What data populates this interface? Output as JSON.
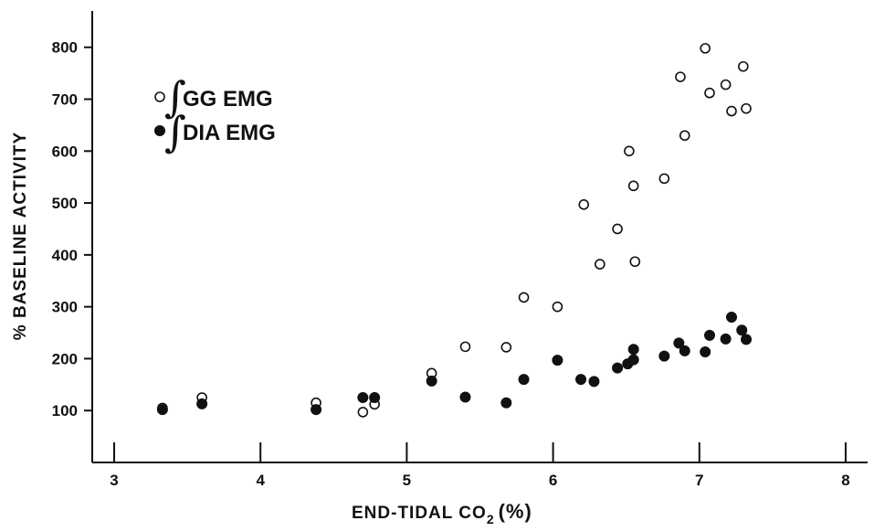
{
  "chart_data": {
    "type": "scatter",
    "title": "",
    "xlabel": "END-TIDAL CO",
    "xlabel_sub": "2",
    "xlabel_unit": "(%)",
    "ylabel": "% BASELINE ACTIVITY",
    "xlim": [
      2.85,
      8.15
    ],
    "ylim": [
      0,
      870
    ],
    "x_ticks": [
      3,
      4,
      5,
      6,
      7,
      8
    ],
    "y_ticks": [
      100,
      200,
      300,
      400,
      500,
      600,
      700,
      800
    ],
    "grid": false,
    "legend_position": "top-left",
    "series": [
      {
        "name": "GG EMG",
        "marker": "open-circle",
        "points": [
          [
            3.33,
            105
          ],
          [
            3.6,
            125
          ],
          [
            4.38,
            115
          ],
          [
            4.7,
            97
          ],
          [
            4.78,
            112
          ],
          [
            5.17,
            172
          ],
          [
            5.4,
            223
          ],
          [
            5.68,
            222
          ],
          [
            5.8,
            318
          ],
          [
            6.03,
            300
          ],
          [
            6.21,
            497
          ],
          [
            6.32,
            382
          ],
          [
            6.44,
            450
          ],
          [
            6.52,
            600
          ],
          [
            6.55,
            533
          ],
          [
            6.56,
            387
          ],
          [
            6.76,
            547
          ],
          [
            6.87,
            743
          ],
          [
            6.9,
            630
          ],
          [
            7.04,
            798
          ],
          [
            7.07,
            712
          ],
          [
            7.18,
            728
          ],
          [
            7.22,
            677
          ],
          [
            7.3,
            763
          ],
          [
            7.32,
            682
          ]
        ]
      },
      {
        "name": "DIA EMG",
        "marker": "filled-circle",
        "points": [
          [
            3.33,
            102
          ],
          [
            3.6,
            113
          ],
          [
            4.38,
            102
          ],
          [
            4.7,
            125
          ],
          [
            4.78,
            125
          ],
          [
            5.17,
            157
          ],
          [
            5.4,
            126
          ],
          [
            5.68,
            115
          ],
          [
            5.8,
            160
          ],
          [
            6.03,
            197
          ],
          [
            6.19,
            160
          ],
          [
            6.28,
            156
          ],
          [
            6.44,
            182
          ],
          [
            6.51,
            190
          ],
          [
            6.55,
            198
          ],
          [
            6.55,
            218
          ],
          [
            6.76,
            205
          ],
          [
            6.86,
            230
          ],
          [
            6.9,
            215
          ],
          [
            7.04,
            213
          ],
          [
            7.07,
            245
          ],
          [
            7.18,
            238
          ],
          [
            7.22,
            280
          ],
          [
            7.29,
            255
          ],
          [
            7.32,
            237
          ]
        ]
      }
    ]
  },
  "legend": {
    "symbol": "∫",
    "items": [
      {
        "label": "GG EMG"
      },
      {
        "label": "DIA EMG"
      }
    ]
  },
  "colors": {
    "ink": "#111111",
    "background": "#ffffff"
  }
}
